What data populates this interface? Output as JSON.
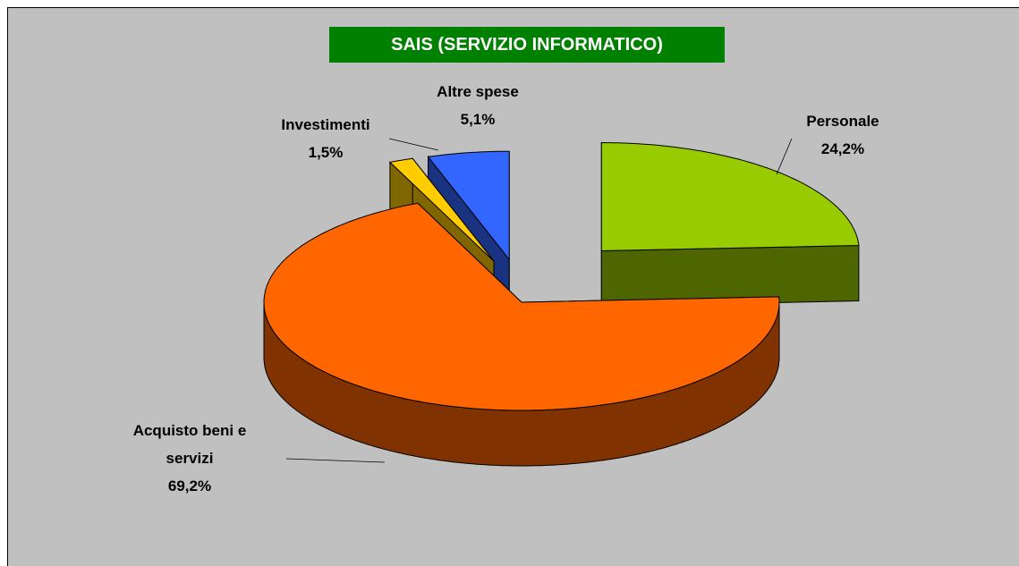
{
  "chart_data": {
    "type": "pie",
    "title": "SAIS (SERVIZIO INFORMATICO)",
    "categories": [
      "Personale",
      "Acquisto beni e servizi",
      "Investimenti",
      "Altre spese"
    ],
    "values": [
      24.2,
      69.2,
      1.5,
      5.1
    ],
    "value_labels": [
      "24,2%",
      "69,2%",
      "1,5%",
      "5,1%"
    ],
    "colors": [
      "#99cc00",
      "#ff6600",
      "#ffcc00",
      "#3366ff"
    ]
  }
}
